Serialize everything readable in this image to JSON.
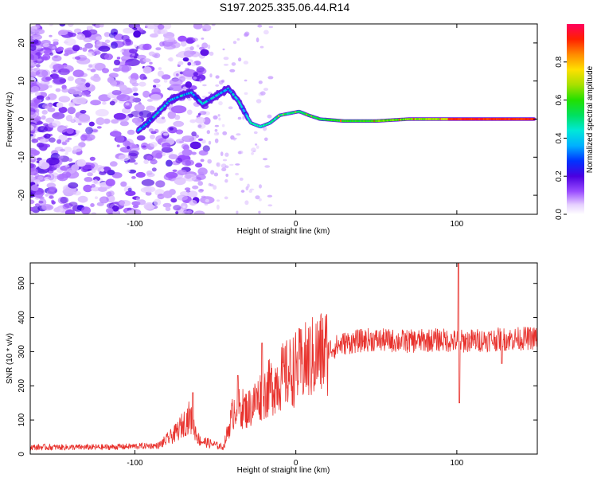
{
  "title": "S197.2025.335.06.44.R14",
  "chart_data": [
    {
      "type": "heatmap",
      "name": "spectrogram",
      "xlabel": "Height of straight line (km)",
      "ylabel": "Frequency (Hz)",
      "xlim": [
        -165,
        150
      ],
      "ylim": [
        -25,
        25
      ],
      "xticks": [
        -100,
        0,
        100
      ],
      "yticks": [
        -20,
        -10,
        0,
        10,
        20
      ],
      "ridge": [
        {
          "x": -98,
          "f": -3
        },
        {
          "x": -92,
          "f": -1
        },
        {
          "x": -85,
          "f": 2
        },
        {
          "x": -78,
          "f": 5
        },
        {
          "x": -72,
          "f": 6
        },
        {
          "x": -65,
          "f": 7
        },
        {
          "x": -58,
          "f": 4
        },
        {
          "x": -50,
          "f": 6
        },
        {
          "x": -42,
          "f": 8
        },
        {
          "x": -36,
          "f": 5
        },
        {
          "x": -32,
          "f": 2
        },
        {
          "x": -28,
          "f": -1
        },
        {
          "x": -22,
          "f": -2
        },
        {
          "x": -16,
          "f": -1
        },
        {
          "x": -10,
          "f": 1
        },
        {
          "x": -4,
          "f": 1.5
        },
        {
          "x": 2,
          "f": 2
        },
        {
          "x": 8,
          "f": 1
        },
        {
          "x": 15,
          "f": 0
        },
        {
          "x": 30,
          "f": -0.5
        },
        {
          "x": 50,
          "f": -0.5
        },
        {
          "x": 70,
          "f": 0
        },
        {
          "x": 95,
          "f": 0
        },
        {
          "x": 120,
          "f": 0
        },
        {
          "x": 148,
          "f": 0
        }
      ],
      "colorbar": {
        "label": "Normalized spectral amplitude",
        "ticks": [
          0.0,
          0.2,
          0.4,
          0.6,
          0.8
        ],
        "tick_labels": [
          "0.0",
          "0.2",
          "0.4",
          "0.6",
          "0.8"
        ],
        "range": [
          0,
          1
        ]
      }
    },
    {
      "type": "line",
      "name": "snr",
      "xlabel": "Height of straight line (km)",
      "ylabel": "SNR (10 * v/v)",
      "xlim": [
        -165,
        150
      ],
      "ylim": [
        0,
        560
      ],
      "xticks": [
        -100,
        0,
        100
      ],
      "yticks": [
        0,
        100,
        200,
        300,
        400,
        500
      ],
      "color": "#e8322d",
      "trend": [
        {
          "x": -165,
          "y": 20
        },
        {
          "x": -120,
          "y": 20
        },
        {
          "x": -85,
          "y": 25
        },
        {
          "x": -75,
          "y": 60
        },
        {
          "x": -66,
          "y": 110
        },
        {
          "x": -60,
          "y": 40
        },
        {
          "x": -45,
          "y": 20
        },
        {
          "x": -38,
          "y": 140
        },
        {
          "x": -30,
          "y": 130
        },
        {
          "x": -22,
          "y": 170
        },
        {
          "x": -10,
          "y": 220
        },
        {
          "x": 0,
          "y": 250
        },
        {
          "x": 10,
          "y": 280
        },
        {
          "x": 20,
          "y": 305
        },
        {
          "x": 30,
          "y": 325
        },
        {
          "x": 45,
          "y": 335
        },
        {
          "x": 70,
          "y": 330
        },
        {
          "x": 90,
          "y": 335
        },
        {
          "x": 100,
          "y": 330
        },
        {
          "x": 120,
          "y": 335
        },
        {
          "x": 150,
          "y": 340
        }
      ],
      "spikes": [
        {
          "x": 101,
          "y": 560
        },
        {
          "x": 101.6,
          "y": 150
        },
        {
          "x": -64,
          "y": 180
        },
        {
          "x": -36,
          "y": 230
        },
        {
          "x": -21,
          "y": 325
        },
        {
          "x": 128,
          "y": 265
        }
      ]
    }
  ]
}
